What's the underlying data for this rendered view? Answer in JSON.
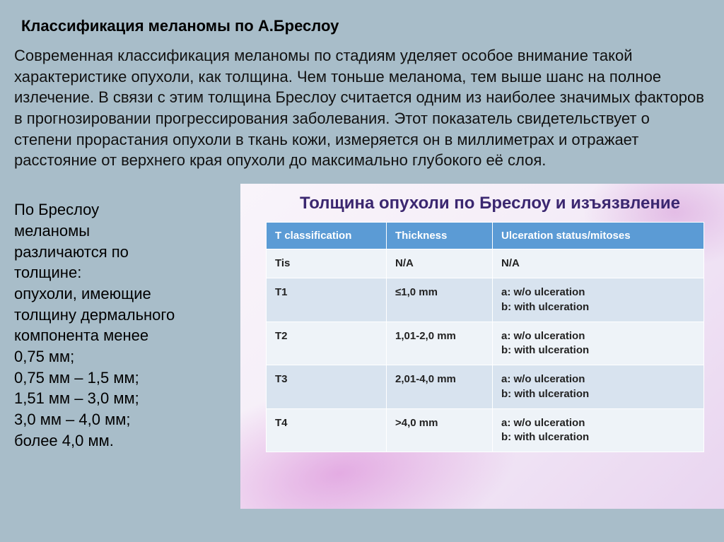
{
  "heading": "Классификация меланомы по А.Бреслоу",
  "intro": "Современная классификация меланомы по стадиям уделяет особое внимание такой характеристике опухоли, как толщина. Чем тоньше меланома, тем выше шанс на полное излечение. В связи с этим толщина Бреслоу считается одним из наиболее значимых факторов в прогнозировании прогрессирования заболевания. Этот показатель свидетельствует о степени прорастания опухоли в ткань кожи, измеряется он в миллиметрах и отражает расстояние от верхнего края опухоли до максимально глубокого её слоя.",
  "left": {
    "l0": "По Бреслоу",
    "l1": "меланомы",
    "l2": "различаются по",
    "l3": "толщине:",
    "l4": "опухоли, имеющие",
    "l5": "толщину дермального",
    "l6": "компонента менее",
    "l7": "0,75 мм;",
    "l8": "0,75 мм – 1,5 мм;",
    "l9": "1,51 мм – 3,0 мм;",
    "l10": "3,0 мм – 4,0 мм;",
    "l11": "более 4,0 мм."
  },
  "panel": {
    "title": "Толщина опухоли по Бреслоу и изъязвление",
    "table": {
      "columns": [
        "T classification",
        "Thickness",
        "Ulceration status/mitoses"
      ],
      "rows": [
        {
          "a": "Tis",
          "b": "N/A",
          "c": "N/A"
        },
        {
          "a": "T1",
          "b": "≤1,0 mm",
          "c": "a: w/o ulceration\nb: with ulceration"
        },
        {
          "a": "T2",
          "b": "1,01-2,0 mm",
          "c": "a: w/o ulceration\nb: with ulceration"
        },
        {
          "a": "T3",
          "b": "2,01-4,0 mm",
          "c": "a: w/o ulceration\nb: with ulceration"
        },
        {
          "a": "T4",
          "b": ">4,0 mm",
          "c": "a: w/o ulceration\nb: with ulceration"
        }
      ],
      "header_bg": "#5b9bd5",
      "row_odd_bg": "#eef3f8",
      "row_even_bg": "#d8e3ef",
      "border_color": "#ffffff",
      "font_size": 15
    }
  },
  "colors": {
    "page_bg": "#a8bdc9",
    "panel_title": "#3b2770"
  }
}
